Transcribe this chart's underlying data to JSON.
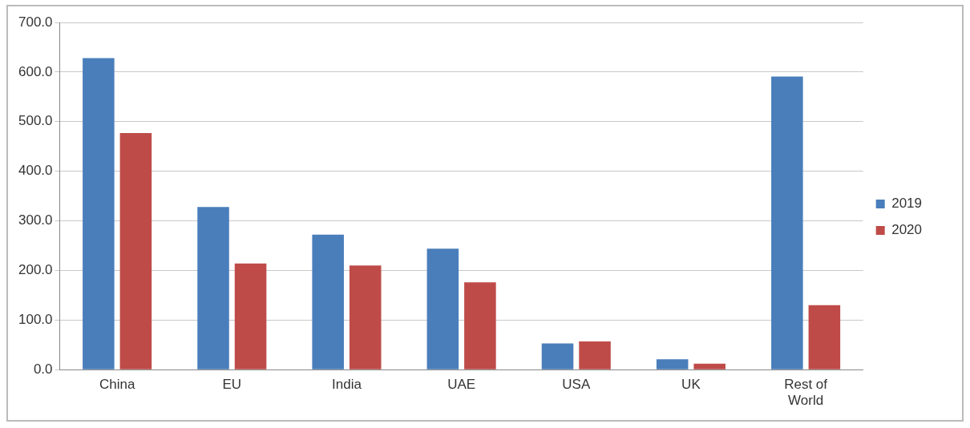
{
  "chart_data": {
    "type": "bar",
    "categories": [
      "China",
      "EU",
      "India",
      "UAE",
      "USA",
      "UK",
      "Rest of World"
    ],
    "series": [
      {
        "name": "2019",
        "color": "#4a7ebb",
        "values": [
          628,
          328,
          272,
          244,
          53,
          21,
          591
        ]
      },
      {
        "name": "2020",
        "color": "#be4b48",
        "values": [
          477,
          214,
          210,
          176,
          57,
          12,
          130
        ]
      }
    ],
    "ylim": [
      0,
      700
    ],
    "yticks": [
      {
        "value": 0,
        "label": "0.0"
      },
      {
        "value": 100,
        "label": "100.0"
      },
      {
        "value": 200,
        "label": "200.0"
      },
      {
        "value": 300,
        "label": "300.0"
      },
      {
        "value": 400,
        "label": "400.0"
      },
      {
        "value": 500,
        "label": "500.0"
      },
      {
        "value": 600,
        "label": "600.0"
      },
      {
        "value": 700,
        "label": "700.0"
      }
    ],
    "grid": "y",
    "legend": "right"
  }
}
